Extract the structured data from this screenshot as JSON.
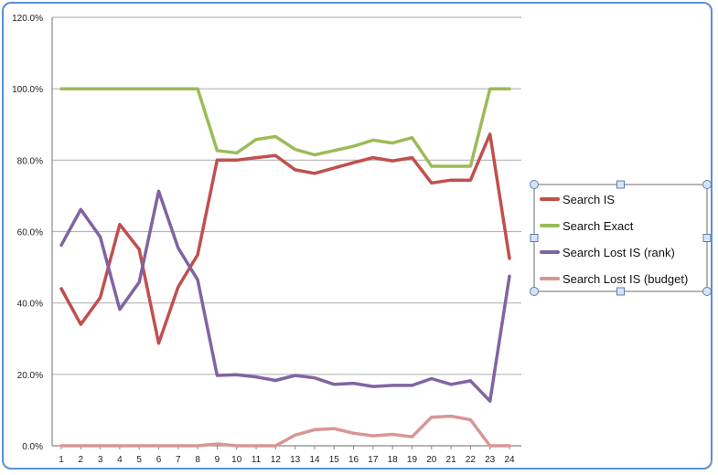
{
  "chart_data": {
    "type": "line",
    "title": "",
    "xlabel": "",
    "ylabel": "",
    "categories": [
      "1",
      "2",
      "3",
      "4",
      "5",
      "6",
      "7",
      "8",
      "9",
      "10",
      "11",
      "12",
      "13",
      "14",
      "15",
      "16",
      "17",
      "18",
      "19",
      "20",
      "21",
      "22",
      "23",
      "24"
    ],
    "ylim": [
      0,
      120
    ],
    "ytick_labels": [
      "0.0%",
      "20.0%",
      "40.0%",
      "60.0%",
      "80.0%",
      "100.0%",
      "120.0%"
    ],
    "grid": true,
    "legend_position": "right",
    "series": [
      {
        "name": "Search IS",
        "color": "#c0504d",
        "values": [
          44,
          34,
          41.5,
          62,
          55,
          28.7,
          44.5,
          53.5,
          80,
          80,
          80.7,
          81.3,
          77.3,
          76.3,
          77.8,
          79.3,
          80.7,
          79.8,
          80.7,
          73.6,
          74.4,
          74.4,
          87.3,
          52.5
        ]
      },
      {
        "name": "Search Exact",
        "color": "#9bbb59",
        "values": [
          100,
          100,
          100,
          100,
          100,
          100,
          100,
          100,
          82.7,
          82,
          85.8,
          86.6,
          83,
          81.5,
          82.7,
          83.9,
          85.6,
          84.8,
          86.3,
          78.3,
          78.3,
          78.3,
          100,
          100
        ]
      },
      {
        "name": "Search Lost IS (rank)",
        "color": "#8064a2",
        "values": [
          56.2,
          66.2,
          58.5,
          38.2,
          45.8,
          71.3,
          55.4,
          46.5,
          19.7,
          19.9,
          19.3,
          18.3,
          19.7,
          19,
          17.2,
          17.5,
          16.6,
          16.9,
          16.9,
          18.8,
          17.2,
          18.2,
          12.5,
          47.5
        ]
      },
      {
        "name": "Search Lost IS (budget)",
        "color": "#d99694",
        "values": [
          0,
          0,
          0,
          0,
          0,
          0,
          0,
          0,
          0.5,
          0,
          0,
          0,
          3,
          4.5,
          4.8,
          3.5,
          2.8,
          3.2,
          2.5,
          8,
          8.3,
          7.3,
          0,
          0
        ]
      }
    ]
  }
}
